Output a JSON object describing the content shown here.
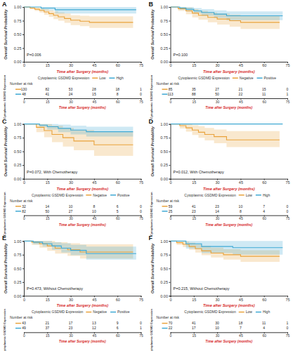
{
  "chart_data": [
    {
      "type": "step",
      "panel_label": "A",
      "annotation": "P=0.006",
      "xlabel": "Time after Surgery (months)",
      "ylabel": "Overall Survival Probability",
      "legend_title": "Cytoplasmic GSDMD Expression",
      "grid": false,
      "xlim": [
        0,
        75
      ],
      "xticks": [
        0,
        15,
        30,
        45,
        60,
        75
      ],
      "ylim": [
        0,
        1
      ],
      "yticks": [
        {
          "value": 0,
          "label": "0.00"
        },
        {
          "value": 0.25,
          "label": "0.25"
        },
        {
          "value": 0.5,
          "label": "0.50"
        },
        {
          "value": 0.75,
          "label": "0.75"
        },
        {
          "value": 1,
          "label": "1.00"
        }
      ],
      "series": [
        {
          "name": "Low",
          "color": "#E9A23B",
          "x": [
            0,
            4,
            7,
            10,
            13,
            16,
            19,
            22,
            26,
            30,
            36,
            42,
            70
          ],
          "values": [
            1,
            0.98,
            0.96,
            0.94,
            0.91,
            0.88,
            0.85,
            0.82,
            0.79,
            0.76,
            0.74,
            0.72,
            0.72
          ],
          "lower": [
            1,
            0.96,
            0.93,
            0.9,
            0.86,
            0.82,
            0.78,
            0.75,
            0.71,
            0.67,
            0.65,
            0.62,
            0.62
          ],
          "upper": [
            1,
            1,
            0.99,
            0.98,
            0.96,
            0.94,
            0.92,
            0.9,
            0.88,
            0.85,
            0.84,
            0.83,
            0.83
          ]
        },
        {
          "name": "High",
          "color": "#3FA9D4",
          "x": [
            0,
            11,
            20,
            72
          ],
          "values": [
            1,
            0.98,
            0.95,
            0.95
          ],
          "lower": [
            1,
            0.94,
            0.88,
            0.88
          ],
          "upper": [
            1,
            1,
            1,
            1
          ]
        }
      ],
      "risk_table": {
        "title": "Number at risk",
        "ylabel": "Cytoplasmic GSDMD Expression",
        "xlabel": "Time after Surgery (months)",
        "x": [
          0,
          15,
          30,
          45,
          60,
          75
        ],
        "rows": [
          [
            130,
            82,
            53,
            28,
            18,
            1
          ],
          [
            48,
            41,
            24,
            15,
            8,
            0
          ]
        ]
      }
    },
    {
      "type": "step",
      "panel_label": "B",
      "annotation": "P=0.100",
      "xlabel": "Time after Surgery (months)",
      "ylabel": "Overall Survival Probability",
      "legend_title": "Cytoplasmic GSDMD Expression",
      "grid": false,
      "xlim": [
        0,
        75
      ],
      "xticks": [
        0,
        15,
        30,
        45,
        60,
        75
      ],
      "ylim": [
        0,
        1
      ],
      "yticks": [
        {
          "value": 0,
          "label": "0.00"
        },
        {
          "value": 0.25,
          "label": "0.25"
        },
        {
          "value": 0.5,
          "label": "0.50"
        },
        {
          "value": 0.75,
          "label": "0.75"
        },
        {
          "value": 1,
          "label": "1.00"
        }
      ],
      "series": [
        {
          "name": "Negative",
          "color": "#E9A23B",
          "x": [
            0,
            5,
            10,
            14,
            18,
            24,
            30,
            38,
            45,
            70
          ],
          "values": [
            1,
            0.97,
            0.93,
            0.89,
            0.85,
            0.81,
            0.78,
            0.75,
            0.72,
            0.72
          ],
          "lower": [
            1,
            0.93,
            0.87,
            0.81,
            0.77,
            0.72,
            0.68,
            0.64,
            0.6,
            0.6
          ],
          "upper": [
            1,
            1,
            0.99,
            0.96,
            0.93,
            0.9,
            0.88,
            0.86,
            0.84,
            0.84
          ]
        },
        {
          "name": "Positive",
          "color": "#3FA9D4",
          "x": [
            0,
            6,
            10,
            15,
            20,
            28,
            36,
            72
          ],
          "values": [
            1,
            0.98,
            0.96,
            0.93,
            0.9,
            0.87,
            0.84,
            0.84
          ],
          "lower": [
            1,
            0.95,
            0.92,
            0.88,
            0.84,
            0.8,
            0.76,
            0.76
          ],
          "upper": [
            1,
            1,
            1,
            0.98,
            0.96,
            0.94,
            0.92,
            0.92
          ]
        }
      ],
      "risk_table": {
        "title": "Number at risk",
        "ylabel": "Cytoplasmic GSDMD Expression",
        "xlabel": "Time after Surgery (months)",
        "x": [
          0,
          15,
          30,
          45,
          60,
          75
        ],
        "rows": [
          [
            85,
            35,
            27,
            21,
            15,
            0
          ],
          [
            113,
            88,
            50,
            22,
            11,
            1
          ]
        ]
      }
    },
    {
      "type": "step",
      "panel_label": "C",
      "annotation": "P=0.072, With Chemotherapy",
      "xlabel": "Time after Surgery (months)",
      "ylabel": "Overall Survival Probability",
      "legend_title": "Cytoplasmic GSDMD Expression",
      "grid": false,
      "xlim": [
        0,
        75
      ],
      "xticks": [
        0,
        15,
        30,
        45,
        60,
        75
      ],
      "ylim": [
        0,
        1
      ],
      "yticks": [
        {
          "value": 0,
          "label": "0.00"
        },
        {
          "value": 0.25,
          "label": "0.25"
        },
        {
          "value": 0.5,
          "label": "0.50"
        },
        {
          "value": 0.75,
          "label": "0.75"
        },
        {
          "value": 1,
          "label": "1.00"
        }
      ],
      "series": [
        {
          "name": "Negative",
          "color": "#E9A23B",
          "x": [
            0,
            8,
            13,
            18,
            25,
            32,
            45,
            70
          ],
          "values": [
            1,
            0.94,
            0.88,
            0.81,
            0.75,
            0.69,
            0.62,
            0.62
          ],
          "lower": [
            1,
            0.85,
            0.76,
            0.67,
            0.59,
            0.52,
            0.42,
            0.42
          ],
          "upper": [
            1,
            1,
            1,
            0.97,
            0.93,
            0.89,
            0.85,
            0.85
          ]
        },
        {
          "name": "Positive",
          "color": "#3FA9D4",
          "x": [
            0,
            10,
            15,
            22,
            30,
            40,
            70
          ],
          "values": [
            1,
            0.98,
            0.95,
            0.92,
            0.89,
            0.86,
            0.86
          ],
          "lower": [
            1,
            0.94,
            0.9,
            0.85,
            0.81,
            0.77,
            0.77
          ],
          "upper": [
            1,
            1,
            1,
            0.99,
            0.97,
            0.95,
            0.95
          ]
        }
      ],
      "risk_table": {
        "title": "Number at risk",
        "ylabel": "Cytoplasmic GSDMD Expression",
        "xlabel": "Time after Surgery (months)",
        "x": [
          0,
          15,
          30,
          45,
          60,
          75
        ],
        "rows": [
          [
            32,
            14,
            10,
            8,
            6,
            0
          ],
          [
            82,
            50,
            27,
            10,
            5,
            0
          ]
        ]
      }
    },
    {
      "type": "step",
      "panel_label": "D",
      "annotation": "P=0.012, With Chemotherapy",
      "xlabel": "Time after Surgery (months)",
      "ylabel": "Overall Survival Probability",
      "legend_title": "Cytoplasmic GSDMD Expression",
      "grid": false,
      "xlim": [
        0,
        75
      ],
      "xticks": [
        0,
        15,
        30,
        45,
        60,
        75
      ],
      "ylim": [
        0,
        1
      ],
      "yticks": [
        {
          "value": 0,
          "label": "0.00"
        },
        {
          "value": 0.25,
          "label": "0.25"
        },
        {
          "value": 0.5,
          "label": "0.50"
        },
        {
          "value": 0.75,
          "label": "0.75"
        },
        {
          "value": 1,
          "label": "1.00"
        }
      ],
      "series": [
        {
          "name": "Low",
          "color": "#E9A23B",
          "x": [
            0,
            6,
            10,
            14,
            18,
            22,
            28,
            36,
            70
          ],
          "values": [
            1,
            0.97,
            0.93,
            0.89,
            0.85,
            0.81,
            0.77,
            0.71,
            0.71
          ],
          "lower": [
            1,
            0.92,
            0.86,
            0.8,
            0.75,
            0.7,
            0.65,
            0.58,
            0.58
          ],
          "upper": [
            1,
            1,
            1,
            0.98,
            0.96,
            0.93,
            0.9,
            0.87,
            0.87
          ]
        },
        {
          "name": "High",
          "color": "#3FA9D4",
          "x": [
            0,
            72
          ],
          "values": [
            1,
            1
          ],
          "lower": [
            1,
            1
          ],
          "upper": [
            1,
            1
          ]
        }
      ],
      "risk_table": {
        "title": "Number at risk",
        "ylabel": "Cytoplasmic GSDMD Expression",
        "xlabel": "Time after Surgery (months)",
        "x": [
          0,
          15,
          30,
          45,
          60,
          75
        ],
        "rows": [
          [
            59,
            41,
            23,
            10,
            7,
            0
          ],
          [
            25,
            23,
            14,
            8,
            4,
            0
          ]
        ]
      }
    },
    {
      "type": "step",
      "panel_label": "E",
      "annotation": "P=0.473, Without Chemotherapy",
      "xlabel": "Time after Surgery (months)",
      "ylabel": "Overall Survival Probability",
      "legend_title": "Cytoplasmic GSDMD Expression",
      "grid": false,
      "xlim": [
        0,
        75
      ],
      "xticks": [
        0,
        15,
        30,
        45,
        60,
        75
      ],
      "ylim": [
        0,
        1
      ],
      "yticks": [
        {
          "value": 0,
          "label": "0.00"
        },
        {
          "value": 0.25,
          "label": "0.25"
        },
        {
          "value": 0.5,
          "label": "0.50"
        },
        {
          "value": 0.75,
          "label": "0.75"
        },
        {
          "value": 1,
          "label": "1.00"
        }
      ],
      "series": [
        {
          "name": "Negative",
          "color": "#E9A23B",
          "x": [
            0,
            5,
            10,
            15,
            20,
            28,
            36,
            70
          ],
          "values": [
            1,
            0.98,
            0.95,
            0.91,
            0.87,
            0.84,
            0.8,
            0.8
          ],
          "lower": [
            1,
            0.93,
            0.88,
            0.82,
            0.77,
            0.73,
            0.68,
            0.68
          ],
          "upper": [
            1,
            1,
            1,
            1,
            0.98,
            0.96,
            0.94,
            0.94
          ]
        },
        {
          "name": "Positive",
          "color": "#3FA9D4",
          "x": [
            0,
            6,
            12,
            18,
            24,
            30,
            40,
            72
          ],
          "values": [
            1,
            0.98,
            0.95,
            0.91,
            0.87,
            0.83,
            0.77,
            0.77
          ],
          "lower": [
            1,
            0.94,
            0.9,
            0.84,
            0.79,
            0.74,
            0.66,
            0.66
          ],
          "upper": [
            1,
            1,
            1,
            0.98,
            0.96,
            0.93,
            0.9,
            0.9
          ]
        }
      ],
      "risk_table": {
        "title": "Number at risk",
        "ylabel": "Cytoplasmic GSDMD Expression",
        "xlabel": "Time after Surgery (months)",
        "x": [
          0,
          15,
          30,
          45,
          60,
          75
        ],
        "rows": [
          [
            43,
            21,
            17,
            13,
            9,
            0
          ],
          [
            49,
            37,
            23,
            12,
            6,
            1
          ]
        ]
      }
    },
    {
      "type": "step",
      "panel_label": "F",
      "annotation": "P=0.215, Without Chemotherapy",
      "xlabel": "Time after Surgery (months)",
      "ylabel": "Overall Survival Probability",
      "legend_title": "Cytoplasmic GSDMD Expression",
      "grid": false,
      "xlim": [
        0,
        75
      ],
      "xticks": [
        0,
        15,
        30,
        45,
        60,
        75
      ],
      "ylim": [
        0,
        1
      ],
      "yticks": [
        {
          "value": 0,
          "label": "0.00"
        },
        {
          "value": 0.25,
          "label": "0.25"
        },
        {
          "value": 0.5,
          "label": "0.50"
        },
        {
          "value": 0.75,
          "label": "0.75"
        },
        {
          "value": 1,
          "label": "1.00"
        }
      ],
      "series": [
        {
          "name": "Low",
          "color": "#E9A23B",
          "x": [
            0,
            4,
            8,
            12,
            16,
            20,
            26,
            34,
            45,
            70
          ],
          "values": [
            1,
            0.97,
            0.94,
            0.9,
            0.86,
            0.82,
            0.78,
            0.75,
            0.72,
            0.72
          ],
          "lower": [
            1,
            0.93,
            0.89,
            0.84,
            0.79,
            0.74,
            0.7,
            0.66,
            0.62,
            0.62
          ],
          "upper": [
            1,
            1,
            0.99,
            0.97,
            0.94,
            0.91,
            0.88,
            0.85,
            0.83,
            0.83
          ]
        },
        {
          "name": "High",
          "color": "#3FA9D4",
          "x": [
            0,
            10,
            20,
            40,
            72
          ],
          "values": [
            1,
            0.95,
            0.9,
            0.88,
            0.88
          ],
          "lower": [
            1,
            0.86,
            0.78,
            0.75,
            0.75
          ],
          "upper": [
            1,
            1,
            1,
            1,
            1
          ]
        }
      ],
      "risk_table": {
        "title": "Number at risk",
        "ylabel": "Cytoplasmic GSDMD Expression",
        "xlabel": "Time after Surgery (months)",
        "x": [
          0,
          15,
          30,
          45,
          60,
          75
        ],
        "rows": [
          [
            70,
            41,
            30,
            18,
            11,
            1
          ],
          [
            22,
            17,
            10,
            7,
            4,
            0
          ]
        ]
      }
    }
  ]
}
